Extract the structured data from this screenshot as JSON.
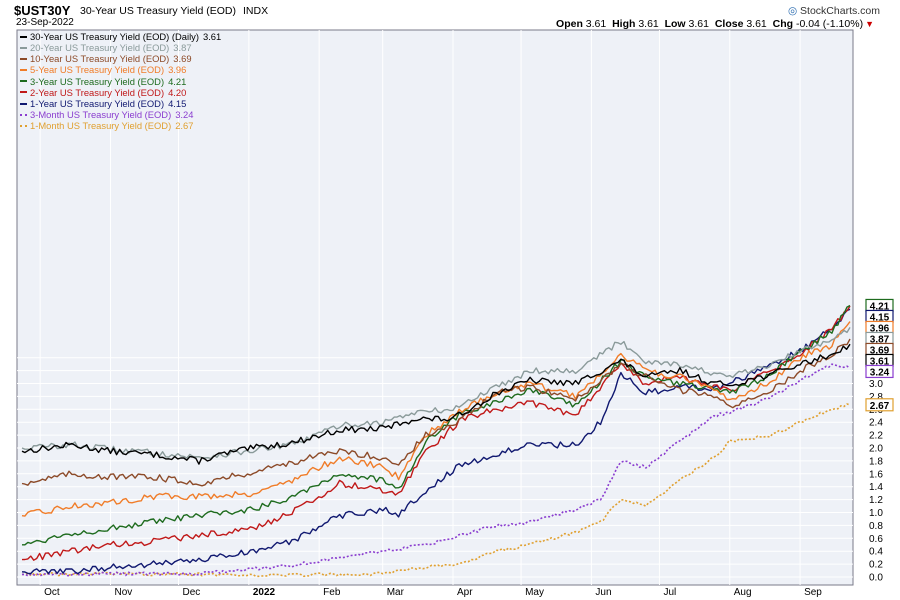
{
  "header": {
    "symbol": "$UST30Y",
    "description": "30-Year US Treasury Yield (EOD)",
    "index": "INDX",
    "date": "23-Sep-2022",
    "brand": "StockCharts.com",
    "quote": {
      "open_label": "Open",
      "open": "3.61",
      "high_label": "High",
      "high": "3.61",
      "low_label": "Low",
      "low": "3.61",
      "close_label": "Close",
      "close": "3.61",
      "chg_label": "Chg",
      "chg": "-0.04 (-1.10%)"
    }
  },
  "chart_data": {
    "type": "line",
    "x_axis": {
      "tick_labels": [
        "Oct",
        "Nov",
        "Dec",
        "2022",
        "Feb",
        "Mar",
        "Apr",
        "May",
        "Jun",
        "Jul",
        "Aug",
        "Sep"
      ],
      "range": [
        "2021-09-23",
        "2022-09-23"
      ]
    },
    "y_axis": {
      "min": 0.0,
      "max": 4.2,
      "side": "right",
      "tick_labels": [
        "0.0",
        "0.2",
        "0.4",
        "0.6",
        "0.8",
        "1.0",
        "1.2",
        "1.4",
        "1.6",
        "1.8",
        "2.0",
        "2.2",
        "2.4",
        "2.6",
        "2.8",
        "3.0",
        "3.2",
        "3.4"
      ]
    },
    "grid": true,
    "legend_position": "top-left",
    "series": [
      {
        "name": "30-Year US Treasury Yield (EOD) (Daily)",
        "last": "3.61",
        "color": "#000000",
        "dashed": false,
        "x": [
          "2021-09-23",
          "2021-10-15",
          "2021-11-01",
          "2021-11-20",
          "2021-12-10",
          "2021-12-20",
          "2022-01-03",
          "2022-01-20",
          "2022-02-10",
          "2022-03-01",
          "2022-03-15",
          "2022-04-01",
          "2022-04-20",
          "2022-05-05",
          "2022-05-25",
          "2022-06-14",
          "2022-06-25",
          "2022-07-10",
          "2022-07-25",
          "2022-08-01",
          "2022-08-20",
          "2022-09-01",
          "2022-09-15",
          "2022-09-20",
          "2022-09-23"
        ],
        "y": [
          1.95,
          2.05,
          1.95,
          1.9,
          1.8,
          1.9,
          2.0,
          2.08,
          2.28,
          2.3,
          2.45,
          2.45,
          2.85,
          3.05,
          3.0,
          3.35,
          3.1,
          3.2,
          3.0,
          2.98,
          3.15,
          3.3,
          3.45,
          3.55,
          3.61
        ]
      },
      {
        "name": "20-Year US Treasury Yield (EOD)",
        "last": "3.87",
        "color": "#8a9a9a",
        "dashed": false,
        "x": [
          "2021-09-23",
          "2021-10-15",
          "2021-11-01",
          "2021-11-20",
          "2021-12-10",
          "2022-01-20",
          "2022-02-10",
          "2022-03-01",
          "2022-03-15",
          "2022-04-01",
          "2022-04-20",
          "2022-05-05",
          "2022-05-25",
          "2022-06-14",
          "2022-06-25",
          "2022-07-10",
          "2022-07-25",
          "2022-08-01",
          "2022-08-20",
          "2022-09-01",
          "2022-09-15",
          "2022-09-23"
        ],
        "y": [
          2.0,
          2.05,
          1.98,
          1.93,
          1.85,
          2.05,
          2.35,
          2.4,
          2.55,
          2.6,
          2.95,
          3.2,
          3.2,
          3.65,
          3.35,
          3.3,
          3.15,
          3.1,
          3.3,
          3.5,
          3.7,
          3.87
        ]
      },
      {
        "name": "10-Year US Treasury Yield (EOD)",
        "last": "3.69",
        "color": "#8c4a28",
        "dashed": false,
        "x": [
          "2021-09-23",
          "2021-10-15",
          "2021-11-01",
          "2021-11-20",
          "2021-12-10",
          "2022-01-03",
          "2022-01-20",
          "2022-02-10",
          "2022-03-01",
          "2022-03-08",
          "2022-03-20",
          "2022-04-01",
          "2022-04-20",
          "2022-05-05",
          "2022-05-25",
          "2022-06-14",
          "2022-06-25",
          "2022-07-10",
          "2022-07-25",
          "2022-08-01",
          "2022-08-20",
          "2022-09-01",
          "2022-09-15",
          "2022-09-23"
        ],
        "y": [
          1.45,
          1.6,
          1.55,
          1.55,
          1.45,
          1.63,
          1.78,
          1.95,
          1.85,
          1.75,
          2.2,
          2.35,
          2.85,
          2.95,
          2.75,
          3.3,
          3.1,
          2.9,
          2.8,
          2.65,
          2.9,
          3.2,
          3.45,
          3.69
        ]
      },
      {
        "name": "5-Year US Treasury Yield (EOD)",
        "last": "3.96",
        "color": "#f07c28",
        "dashed": false,
        "x": [
          "2021-09-23",
          "2021-10-15",
          "2021-11-01",
          "2021-11-20",
          "2021-12-10",
          "2022-01-03",
          "2022-01-20",
          "2022-02-10",
          "2022-03-01",
          "2022-03-08",
          "2022-03-20",
          "2022-04-05",
          "2022-04-20",
          "2022-05-05",
          "2022-05-25",
          "2022-06-14",
          "2022-06-25",
          "2022-07-10",
          "2022-07-25",
          "2022-08-01",
          "2022-08-20",
          "2022-09-01",
          "2022-09-15",
          "2022-09-23"
        ],
        "y": [
          0.95,
          1.1,
          1.15,
          1.25,
          1.25,
          1.3,
          1.5,
          1.85,
          1.7,
          1.55,
          2.2,
          2.6,
          2.85,
          3.0,
          2.8,
          3.45,
          3.2,
          3.1,
          2.9,
          2.75,
          3.05,
          3.4,
          3.6,
          3.96
        ]
      },
      {
        "name": "3-Year US Treasury Yield (EOD)",
        "last": "4.21",
        "color": "#1e6b1e",
        "dashed": false,
        "x": [
          "2021-09-23",
          "2021-10-15",
          "2021-11-01",
          "2021-11-20",
          "2021-12-10",
          "2022-01-03",
          "2022-01-20",
          "2022-02-10",
          "2022-03-01",
          "2022-03-08",
          "2022-03-20",
          "2022-04-05",
          "2022-04-20",
          "2022-05-05",
          "2022-05-25",
          "2022-06-14",
          "2022-06-25",
          "2022-07-10",
          "2022-07-25",
          "2022-08-01",
          "2022-08-20",
          "2022-09-01",
          "2022-09-15",
          "2022-09-23"
        ],
        "y": [
          0.5,
          0.68,
          0.75,
          0.85,
          0.95,
          1.05,
          1.25,
          1.6,
          1.5,
          1.35,
          2.1,
          2.55,
          2.7,
          2.9,
          2.65,
          3.35,
          3.1,
          3.0,
          2.9,
          2.85,
          3.15,
          3.5,
          3.8,
          4.21
        ]
      },
      {
        "name": "2-Year US Treasury Yield (EOD)",
        "last": "4.20",
        "color": "#c01818",
        "dashed": false,
        "x": [
          "2021-09-23",
          "2021-10-15",
          "2021-11-01",
          "2021-11-20",
          "2021-12-10",
          "2022-01-03",
          "2022-01-20",
          "2022-02-10",
          "2022-03-01",
          "2022-03-08",
          "2022-03-20",
          "2022-04-05",
          "2022-04-20",
          "2022-05-05",
          "2022-05-25",
          "2022-06-14",
          "2022-06-25",
          "2022-07-10",
          "2022-07-25",
          "2022-08-01",
          "2022-08-20",
          "2022-09-01",
          "2022-09-15",
          "2022-09-23"
        ],
        "y": [
          0.27,
          0.4,
          0.5,
          0.55,
          0.65,
          0.75,
          1.0,
          1.45,
          1.35,
          1.3,
          1.95,
          2.45,
          2.6,
          2.7,
          2.5,
          3.3,
          3.0,
          3.1,
          2.95,
          2.9,
          3.2,
          3.45,
          3.85,
          4.2
        ]
      },
      {
        "name": "1-Year US Treasury Yield (EOD)",
        "last": "4.15",
        "color": "#101870",
        "dashed": false,
        "x": [
          "2021-09-23",
          "2021-10-15",
          "2021-11-01",
          "2021-11-20",
          "2021-12-10",
          "2022-01-03",
          "2022-01-20",
          "2022-02-10",
          "2022-03-01",
          "2022-03-08",
          "2022-03-20",
          "2022-04-05",
          "2022-04-20",
          "2022-05-05",
          "2022-05-25",
          "2022-06-05",
          "2022-06-14",
          "2022-06-25",
          "2022-07-10",
          "2022-07-25",
          "2022-08-01",
          "2022-08-20",
          "2022-09-01",
          "2022-09-15",
          "2022-09-23"
        ],
        "y": [
          0.08,
          0.09,
          0.15,
          0.2,
          0.26,
          0.4,
          0.55,
          0.95,
          1.05,
          0.95,
          1.35,
          1.75,
          1.9,
          2.05,
          2.05,
          2.4,
          3.15,
          2.85,
          2.95,
          2.9,
          3.0,
          3.3,
          3.5,
          3.85,
          4.15
        ]
      },
      {
        "name": "3-Month US Treasury Yield (EOD)",
        "last": "3.24",
        "color": "#8a3dcf",
        "dashed": true,
        "x": [
          "2021-09-23",
          "2021-11-01",
          "2021-12-10",
          "2022-01-20",
          "2022-02-10",
          "2022-03-01",
          "2022-03-20",
          "2022-04-05",
          "2022-04-20",
          "2022-05-05",
          "2022-05-25",
          "2022-06-05",
          "2022-06-14",
          "2022-06-25",
          "2022-07-10",
          "2022-07-25",
          "2022-08-01",
          "2022-08-20",
          "2022-09-01",
          "2022-09-15",
          "2022-09-23"
        ],
        "y": [
          0.04,
          0.05,
          0.05,
          0.18,
          0.3,
          0.4,
          0.5,
          0.65,
          0.8,
          0.85,
          1.05,
          1.2,
          1.8,
          1.7,
          2.1,
          2.5,
          2.55,
          2.8,
          3.05,
          3.3,
          3.24
        ]
      },
      {
        "name": "1-Month US Treasury Yield (EOD)",
        "last": "2.67",
        "color": "#e0a030",
        "dashed": true,
        "x": [
          "2021-09-23",
          "2021-11-01",
          "2021-12-10",
          "2022-01-20",
          "2022-02-10",
          "2022-03-01",
          "2022-03-20",
          "2022-04-05",
          "2022-04-20",
          "2022-05-05",
          "2022-05-25",
          "2022-06-05",
          "2022-06-14",
          "2022-06-25",
          "2022-07-10",
          "2022-07-25",
          "2022-08-01",
          "2022-08-20",
          "2022-09-01",
          "2022-09-15",
          "2022-09-23"
        ],
        "y": [
          0.04,
          0.05,
          0.04,
          0.03,
          0.04,
          0.05,
          0.15,
          0.2,
          0.4,
          0.5,
          0.7,
          0.85,
          1.2,
          1.1,
          1.5,
          1.85,
          2.1,
          2.2,
          2.4,
          2.6,
          2.67
        ]
      }
    ],
    "last_value_tags": [
      {
        "label": "4.21",
        "value": 4.21
      },
      {
        "label": "4.15",
        "value": 4.15
      },
      {
        "label": "3.96",
        "value": 3.96
      },
      {
        "label": "3.87",
        "value": 3.87
      },
      {
        "label": "3.69",
        "value": 3.69
      },
      {
        "label": "3.61",
        "value": 3.61
      },
      {
        "label": "3.24",
        "value": 3.24
      },
      {
        "label": "2.67",
        "value": 2.67
      }
    ]
  }
}
